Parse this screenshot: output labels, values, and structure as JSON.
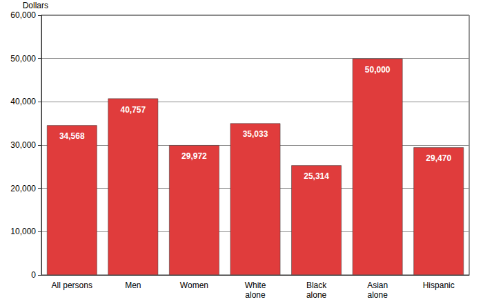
{
  "chart_data": {
    "type": "bar",
    "y_label": "Dollars",
    "categories": [
      "All persons",
      "Men",
      "Women",
      "White\nalone",
      "Black\nalone",
      "Asian\nalone",
      "Hispanic"
    ],
    "values": [
      34568,
      40757,
      29972,
      35033,
      25314,
      50000,
      29470
    ],
    "value_labels": [
      "34,568",
      "40,757",
      "29,972",
      "35,033",
      "25,314",
      "50,000",
      "29,470"
    ],
    "data_labels": true,
    "color": "#e03c3c",
    "ylim": [
      0,
      60000
    ],
    "yticks": [
      0,
      {
        "value": 10000,
        "label": "10,000"
      },
      {
        "value": 20000,
        "label": "20,000"
      },
      {
        "value": 30000,
        "label": "30,000"
      },
      {
        "value": 40000,
        "label": "40,000"
      },
      {
        "value": 50000,
        "label": "50,000"
      },
      {
        "value": 60000,
        "label": "60,000"
      }
    ],
    "grid": true
  }
}
